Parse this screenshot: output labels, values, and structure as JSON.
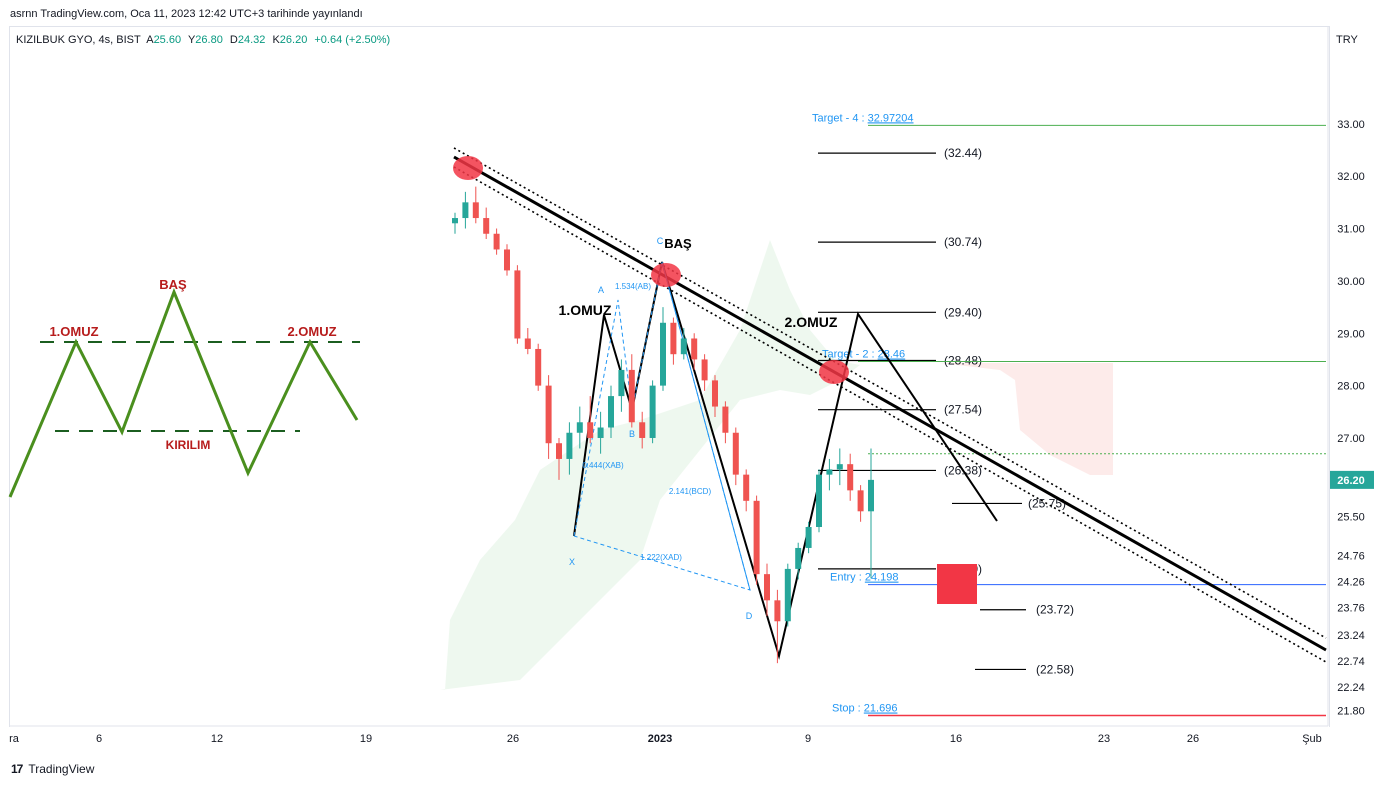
{
  "header": {
    "published": "asrnn TradingView.com, Oca 11, 2023 12:42 UTC+3 tarihinde yayınlandı"
  },
  "legend": {
    "symbol": "KIZILBUK GYO, 4s, BIST",
    "open_label": "A",
    "open": "25.60",
    "high_label": "Y",
    "high": "26.80",
    "low_label": "D",
    "low": "24.32",
    "close_label": "K",
    "close": "26.20",
    "change": "+0.64 (+2.50%)"
  },
  "currency": "TRY",
  "footer": {
    "brand": "TradingView",
    "logo_glyph": "17"
  },
  "colors": {
    "up": "#26a69a",
    "down": "#ef5350",
    "target_line": "#4caf50",
    "entry_line": "#2962ff",
    "stop_line": "#f23645",
    "label_blue": "#2196f3"
  },
  "chart_data": {
    "type": "candlestick",
    "symbol": "KIZILBUK GYO",
    "timeframe": "4s",
    "currency": "TRY",
    "y_range": [
      21.5,
      34.6
    ],
    "y_ticks": [
      "33.00",
      "32.00",
      "31.00",
      "30.00",
      "29.00",
      "28.00",
      "27.00",
      "26.20",
      "25.50",
      "24.76",
      "24.26",
      "23.76",
      "23.24",
      "22.74",
      "22.24",
      "21.80"
    ],
    "last_price": "26.20",
    "x_ticks": [
      "ra",
      "6",
      "12",
      "19",
      "26",
      "2023",
      "9",
      "16",
      "23",
      "26",
      "Şub"
    ],
    "candles": [
      [
        31.1,
        31.3,
        30.9,
        31.2
      ],
      [
        31.2,
        31.7,
        31.0,
        31.5
      ],
      [
        31.5,
        31.8,
        31.1,
        31.2
      ],
      [
        31.2,
        31.4,
        30.8,
        30.9
      ],
      [
        30.9,
        31.0,
        30.5,
        30.6
      ],
      [
        30.6,
        30.7,
        30.1,
        30.2
      ],
      [
        30.2,
        30.3,
        28.8,
        28.9
      ],
      [
        28.9,
        29.1,
        28.6,
        28.7
      ],
      [
        28.7,
        28.8,
        27.9,
        28.0
      ],
      [
        28.0,
        28.2,
        26.6,
        26.9
      ],
      [
        26.9,
        27.0,
        26.2,
        26.6
      ],
      [
        26.6,
        27.3,
        26.3,
        27.1
      ],
      [
        27.1,
        27.6,
        26.8,
        27.3
      ],
      [
        27.3,
        27.8,
        26.9,
        27.0
      ],
      [
        27.0,
        27.5,
        26.7,
        27.2
      ],
      [
        27.2,
        28.0,
        27.0,
        27.8
      ],
      [
        27.8,
        28.5,
        27.5,
        28.3
      ],
      [
        28.3,
        28.6,
        27.2,
        27.3
      ],
      [
        27.3,
        27.5,
        26.8,
        27.0
      ],
      [
        27.0,
        28.1,
        26.9,
        28.0
      ],
      [
        28.0,
        29.5,
        27.9,
        29.2
      ],
      [
        29.2,
        29.3,
        28.4,
        28.6
      ],
      [
        28.6,
        29.1,
        28.5,
        28.9
      ],
      [
        28.9,
        29.0,
        28.3,
        28.5
      ],
      [
        28.5,
        28.6,
        27.9,
        28.1
      ],
      [
        28.1,
        28.2,
        27.4,
        27.6
      ],
      [
        27.6,
        27.7,
        26.9,
        27.1
      ],
      [
        27.1,
        27.2,
        26.1,
        26.3
      ],
      [
        26.3,
        26.4,
        25.6,
        25.8
      ],
      [
        25.8,
        25.9,
        24.2,
        24.4
      ],
      [
        24.4,
        24.6,
        23.6,
        23.9
      ],
      [
        23.9,
        24.1,
        22.7,
        23.5
      ],
      [
        23.5,
        24.6,
        23.4,
        24.5
      ],
      [
        24.5,
        25.0,
        24.3,
        24.9
      ],
      [
        24.9,
        25.4,
        24.8,
        25.3
      ],
      [
        25.3,
        26.4,
        25.2,
        26.3
      ],
      [
        26.3,
        26.6,
        26.0,
        26.4
      ],
      [
        26.4,
        26.8,
        26.1,
        26.5
      ],
      [
        26.5,
        26.7,
        25.8,
        26.0
      ],
      [
        26.0,
        26.1,
        25.4,
        25.6
      ],
      [
        25.6,
        26.8,
        24.32,
        26.2
      ]
    ],
    "levels": [
      {
        "label": "(32.44)",
        "price": 32.44
      },
      {
        "label": "(30.74)",
        "price": 30.74
      },
      {
        "label": "(29.40)",
        "price": 29.4
      },
      {
        "label": "(28.48)",
        "price": 28.48
      },
      {
        "label": "(27.54)",
        "price": 27.54
      },
      {
        "label": "(26.38)",
        "price": 26.38
      },
      {
        "label": "(25.75)",
        "price": 25.75
      },
      {
        "label": "(24.50)",
        "price": 24.5
      },
      {
        "label": "(23.72)",
        "price": 23.72
      },
      {
        "label": "(22.58)",
        "price": 22.58
      }
    ],
    "targets": [
      {
        "label": "Target - 4 : ",
        "value": "32.97204",
        "price": 32.97
      },
      {
        "label": "Target - 2 : ",
        "value": "28.46",
        "price": 28.46
      },
      {
        "label": "Entry : ",
        "value": "24.198",
        "price": 24.2
      },
      {
        "label": "Stop : ",
        "value": "21.696",
        "price": 21.7
      }
    ],
    "pattern_labels": {
      "head": "BAŞ",
      "shoulder1": "1.OMUZ",
      "shoulder2": "2.OMUZ",
      "neckline": "KIRILIM"
    },
    "harmonic_points": [
      "X",
      "A",
      "B",
      "C",
      "D"
    ],
    "harmonic_ratios": [
      "1.534(AB)",
      "0.444(XAB)",
      "2.141(BCD)",
      "1.222(XAD)"
    ]
  }
}
